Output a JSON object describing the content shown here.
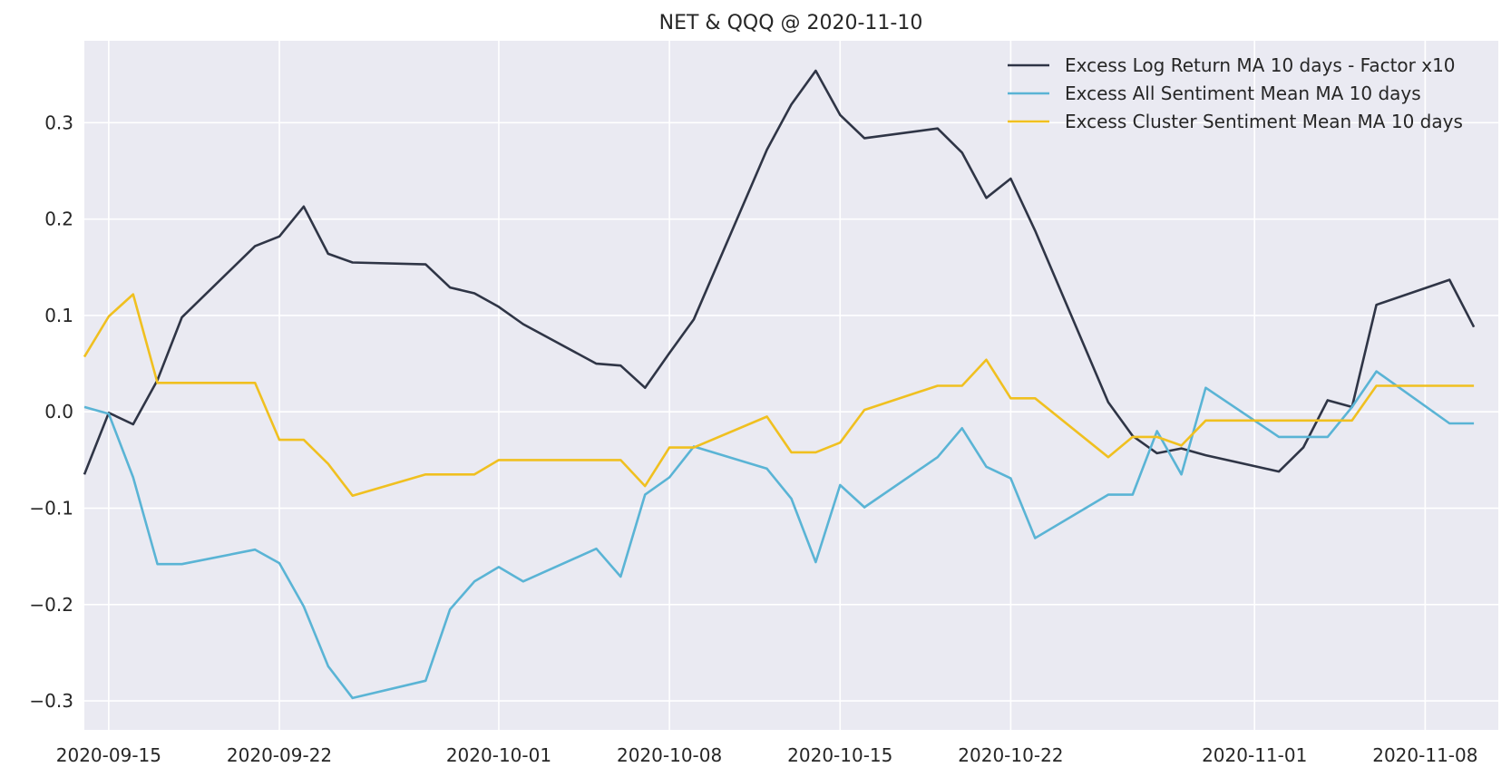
{
  "chart_data": {
    "type": "line",
    "title": "NET & QQQ @ 2020-11-10",
    "xlabel": "",
    "ylabel": "",
    "x": [
      "2020-09-14",
      "2020-09-15",
      "2020-09-16",
      "2020-09-17",
      "2020-09-18",
      "2020-09-21",
      "2020-09-22",
      "2020-09-23",
      "2020-09-24",
      "2020-09-25",
      "2020-09-28",
      "2020-09-29",
      "2020-09-30",
      "2020-10-01",
      "2020-10-02",
      "2020-10-05",
      "2020-10-06",
      "2020-10-07",
      "2020-10-08",
      "2020-10-09",
      "2020-10-12",
      "2020-10-13",
      "2020-10-14",
      "2020-10-15",
      "2020-10-16",
      "2020-10-19",
      "2020-10-20",
      "2020-10-21",
      "2020-10-22",
      "2020-10-23",
      "2020-10-26",
      "2020-10-27",
      "2020-10-28",
      "2020-10-29",
      "2020-10-30",
      "2020-11-02",
      "2020-11-03",
      "2020-11-04",
      "2020-11-05",
      "2020-11-06",
      "2020-11-09",
      "2020-11-10"
    ],
    "xticks": [
      "2020-09-15",
      "2020-09-22",
      "2020-10-01",
      "2020-10-08",
      "2020-10-15",
      "2020-10-22",
      "2020-11-01",
      "2020-11-08"
    ],
    "xlim": [
      "2020-09-14",
      "2020-11-11"
    ],
    "ylim": [
      -0.33,
      0.385
    ],
    "yticks": [
      -0.3,
      -0.2,
      -0.1,
      0.0,
      0.1,
      0.2,
      0.3
    ],
    "ytick_labels": [
      "−0.3",
      "−0.2",
      "−0.1",
      "0.0",
      "0.1",
      "0.2",
      "0.3"
    ],
    "grid": true,
    "legend_position": "top-right",
    "series": [
      {
        "name": "Excess Log Return MA 10 days - Factor x10",
        "color": "#2f3546",
        "values": [
          -0.065,
          -0.001,
          -0.013,
          0.033,
          0.098,
          0.172,
          0.182,
          0.213,
          0.164,
          0.155,
          0.153,
          0.129,
          0.123,
          0.109,
          0.091,
          0.05,
          0.048,
          0.025,
          0.061,
          0.096,
          0.272,
          0.319,
          0.354,
          0.308,
          0.284,
          0.294,
          0.269,
          0.222,
          0.242,
          0.188,
          0.01,
          -0.025,
          -0.043,
          -0.038,
          -0.045,
          -0.062,
          -0.037,
          0.012,
          0.005,
          0.111,
          0.137,
          0.088
        ]
      },
      {
        "name": "Excess All Sentiment Mean MA 10 days",
        "color": "#5ab4d5",
        "values": [
          0.005,
          -0.002,
          -0.068,
          -0.158,
          -0.158,
          -0.143,
          -0.157,
          -0.202,
          -0.264,
          -0.297,
          -0.279,
          -0.205,
          -0.176,
          -0.161,
          -0.176,
          -0.142,
          -0.171,
          -0.086,
          -0.068,
          -0.036,
          -0.059,
          -0.09,
          -0.156,
          -0.076,
          -0.099,
          -0.047,
          -0.017,
          -0.057,
          -0.069,
          -0.131,
          -0.086,
          -0.086,
          -0.02,
          -0.065,
          0.025,
          -0.026,
          -0.026,
          -0.026,
          0.005,
          0.042,
          -0.012,
          -0.012
        ]
      },
      {
        "name": "Excess Cluster Sentiment Mean MA 10 days",
        "color": "#f0c020",
        "values": [
          0.057,
          0.099,
          0.122,
          0.03,
          0.03,
          0.03,
          -0.029,
          -0.029,
          -0.054,
          -0.087,
          -0.065,
          -0.065,
          -0.065,
          -0.05,
          -0.05,
          -0.05,
          -0.05,
          -0.077,
          -0.037,
          -0.037,
          -0.005,
          -0.042,
          -0.042,
          -0.032,
          0.002,
          0.027,
          0.027,
          0.054,
          0.014,
          0.014,
          -0.047,
          -0.026,
          -0.026,
          -0.035,
          -0.009,
          -0.009,
          -0.009,
          -0.009,
          -0.009,
          0.027,
          0.027,
          0.027
        ]
      }
    ]
  }
}
